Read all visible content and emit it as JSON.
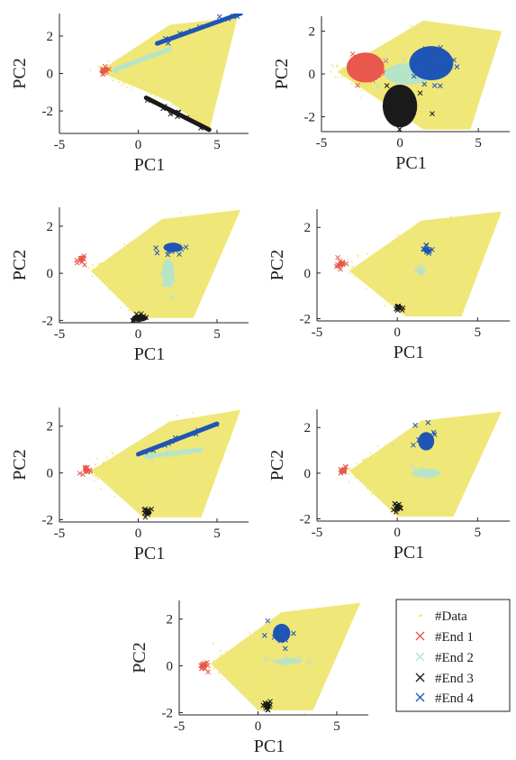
{
  "chart_data": [
    {
      "type": "scatter",
      "panel": 1,
      "xlabel": "PC1",
      "ylabel": "PC2",
      "xlim": [
        -5,
        7
      ],
      "ylim": [
        -3.2,
        3.2
      ],
      "xticks": [
        "-5",
        "0",
        "5"
      ],
      "yticks": [
        "-2",
        "0",
        "2"
      ],
      "data_cloud": {
        "tip": [
          -2.5,
          0.1
        ],
        "tops": [
          [
            2,
            2.6
          ],
          [
            6.3,
            3.0
          ]
        ],
        "bottoms": [
          [
            2,
            -1.5
          ],
          [
            4.5,
            -3.1
          ]
        ]
      },
      "series": [
        {
          "name": "#End 1",
          "shape": "segment",
          "from": [
            -2.3,
            0.1
          ],
          "to": [
            -2.0,
            0.2
          ]
        },
        {
          "name": "#End 2",
          "shape": "segment",
          "from": [
            -1.5,
            0.2
          ],
          "to": [
            2.0,
            1.3
          ]
        },
        {
          "name": "#End 3",
          "shape": "segment",
          "from": [
            0.5,
            -1.3
          ],
          "to": [
            4.5,
            -3.0
          ]
        },
        {
          "name": "#End 4",
          "shape": "segment",
          "from": [
            1.2,
            1.6
          ],
          "to": [
            6.5,
            3.2
          ]
        }
      ]
    },
    {
      "type": "scatter",
      "panel": 2,
      "xlabel": "PC1",
      "ylabel": "PC2",
      "xlim": [
        -5,
        7
      ],
      "ylim": [
        -2.7,
        2.7
      ],
      "xticks": [
        "-5",
        "0",
        "5"
      ],
      "yticks": [
        "-2",
        "0",
        "2"
      ],
      "data_cloud": {
        "tip": [
          -4,
          0.1
        ],
        "tops": [
          [
            1.5,
            2.5
          ],
          [
            6.5,
            2.0
          ]
        ],
        "bottoms": [
          [
            1.5,
            -2.6
          ],
          [
            4.5,
            -2.6
          ]
        ]
      },
      "series": [
        {
          "name": "#End 1",
          "shape": "blob",
          "center": [
            -2.2,
            0.3
          ],
          "spread": [
            1.2,
            0.7
          ]
        },
        {
          "name": "#End 2",
          "shape": "blob",
          "center": [
            0.5,
            0.0
          ],
          "spread": [
            1.5,
            0.5
          ]
        },
        {
          "name": "#End 3",
          "shape": "blob",
          "center": [
            0.0,
            -1.5
          ],
          "spread": [
            1.1,
            1.0
          ]
        },
        {
          "name": "#End 4",
          "shape": "blob",
          "center": [
            2.0,
            0.5
          ],
          "spread": [
            1.4,
            0.8
          ]
        }
      ]
    },
    {
      "type": "scatter",
      "panel": 3,
      "xlabel": "PC1",
      "ylabel": "PC2",
      "xlim": [
        -5,
        7
      ],
      "ylim": [
        -2.1,
        2.8
      ],
      "xticks": [
        "-5",
        "0",
        "5"
      ],
      "yticks": [
        "-2",
        "0",
        "2"
      ],
      "data_cloud": {
        "tip": [
          -3,
          0.1
        ],
        "tops": [
          [
            1.5,
            2.3
          ],
          [
            6.5,
            2.7
          ]
        ],
        "bottoms": [
          [
            0,
            -1.9
          ],
          [
            3.5,
            -1.9
          ]
        ]
      },
      "series": [
        {
          "name": "#End 1",
          "shape": "blob",
          "center": [
            -3.6,
            0.6
          ],
          "spread": [
            0.15,
            0.15
          ]
        },
        {
          "name": "#End 2",
          "shape": "blob",
          "center": [
            1.9,
            0.0
          ],
          "spread": [
            0.4,
            0.6
          ]
        },
        {
          "name": "#End 3",
          "shape": "blob",
          "center": [
            0.1,
            -1.9
          ],
          "spread": [
            0.5,
            0.15
          ]
        },
        {
          "name": "#End 4",
          "shape": "blob",
          "center": [
            2.2,
            1.1
          ],
          "spread": [
            0.6,
            0.2
          ]
        }
      ]
    },
    {
      "type": "scatter",
      "panel": 4,
      "xlabel": "PC1",
      "ylabel": "PC2",
      "xlim": [
        -5,
        7
      ],
      "ylim": [
        -2.1,
        2.8
      ],
      "xticks": [
        "-5",
        "0",
        "5"
      ],
      "yticks": [
        "-2",
        "0",
        "2"
      ],
      "data_cloud": {
        "tip": [
          -3,
          0.1
        ],
        "tops": [
          [
            1.5,
            2.3
          ],
          [
            6.5,
            2.7
          ]
        ],
        "bottoms": [
          [
            0.5,
            -1.9
          ],
          [
            4,
            -1.9
          ]
        ]
      },
      "series": [
        {
          "name": "#End 1",
          "shape": "blob",
          "center": [
            -3.5,
            0.4
          ],
          "spread": [
            0.2,
            0.08
          ]
        },
        {
          "name": "#End 2",
          "shape": "blob",
          "center": [
            1.5,
            0.1
          ],
          "spread": [
            0.1,
            0.1
          ]
        },
        {
          "name": "#End 3",
          "shape": "blob",
          "center": [
            0.1,
            -1.5
          ],
          "spread": [
            0.1,
            0.06
          ]
        },
        {
          "name": "#End 4",
          "shape": "blob",
          "center": [
            1.8,
            1.0
          ],
          "spread": [
            0.1,
            0.06
          ]
        }
      ]
    },
    {
      "type": "scatter",
      "panel": 5,
      "xlabel": "PC1",
      "ylabel": "PC2",
      "xlim": [
        -5,
        7
      ],
      "ylim": [
        -2.1,
        2.8
      ],
      "xticks": [
        "-5",
        "0",
        "5"
      ],
      "yticks": [
        "-2",
        "0",
        "2"
      ],
      "data_cloud": {
        "tip": [
          -3,
          0.1
        ],
        "tops": [
          [
            2,
            2.2
          ],
          [
            6.5,
            2.7
          ]
        ],
        "bottoms": [
          [
            0.3,
            -1.9
          ],
          [
            4,
            -1.9
          ]
        ]
      },
      "series": [
        {
          "name": "#End 1",
          "shape": "blob",
          "center": [
            -3.3,
            0.1
          ],
          "spread": [
            0.1,
            0.06
          ]
        },
        {
          "name": "#End 2",
          "shape": "segment",
          "from": [
            0.5,
            0.7
          ],
          "to": [
            4.0,
            1.0
          ]
        },
        {
          "name": "#End 3",
          "shape": "blob",
          "center": [
            0.6,
            -1.7
          ],
          "spread": [
            0.25,
            0.1
          ]
        },
        {
          "name": "#End 4",
          "shape": "segment",
          "from": [
            0.0,
            0.8
          ],
          "to": [
            5.0,
            2.1
          ]
        }
      ]
    },
    {
      "type": "scatter",
      "panel": 6,
      "xlabel": "PC1",
      "ylabel": "PC2",
      "xlim": [
        -5,
        7
      ],
      "ylim": [
        -2.1,
        2.8
      ],
      "xticks": [
        "-5",
        "0",
        "5"
      ],
      "yticks": [
        "-2",
        "0",
        "2"
      ],
      "data_cloud": {
        "tip": [
          -3,
          0.1
        ],
        "tops": [
          [
            1.5,
            2.3
          ],
          [
            6.5,
            2.7
          ]
        ],
        "bottoms": [
          [
            0,
            -1.9
          ],
          [
            3.5,
            -1.9
          ]
        ]
      },
      "series": [
        {
          "name": "#End 1",
          "shape": "blob",
          "center": [
            -3.4,
            0.1
          ],
          "spread": [
            0.18,
            0.1
          ]
        },
        {
          "name": "#End 2",
          "shape": "blob",
          "center": [
            1.8,
            0.0
          ],
          "spread": [
            0.9,
            0.2
          ]
        },
        {
          "name": "#End 3",
          "shape": "blob",
          "center": [
            0.0,
            -1.5
          ],
          "spread": [
            0.1,
            0.15
          ]
        },
        {
          "name": "#End 4",
          "shape": "blob",
          "center": [
            1.8,
            1.4
          ],
          "spread": [
            0.5,
            0.4
          ]
        }
      ]
    },
    {
      "type": "scatter",
      "panel": 7,
      "xlabel": "PC1",
      "ylabel": "PC2",
      "xlim": [
        -5,
        7
      ],
      "ylim": [
        -2.1,
        2.8
      ],
      "xticks": [
        "-5",
        "0",
        "5"
      ],
      "yticks": [
        "-2",
        "0",
        "2"
      ],
      "data_cloud": {
        "tip": [
          -3,
          0.1
        ],
        "tops": [
          [
            1.5,
            2.3
          ],
          [
            6.5,
            2.7
          ]
        ],
        "bottoms": [
          [
            0,
            -1.9
          ],
          [
            3.5,
            -1.9
          ]
        ]
      },
      "series": [
        {
          "name": "#End 1",
          "shape": "blob",
          "center": [
            -3.4,
            0.0
          ],
          "spread": [
            0.18,
            0.12
          ]
        },
        {
          "name": "#End 2",
          "shape": "blob",
          "center": [
            1.9,
            0.2
          ],
          "spread": [
            0.9,
            0.12
          ]
        },
        {
          "name": "#End 3",
          "shape": "blob",
          "center": [
            0.6,
            -1.7
          ],
          "spread": [
            0.12,
            0.15
          ]
        },
        {
          "name": "#End 4",
          "shape": "blob",
          "center": [
            1.5,
            1.4
          ],
          "spread": [
            0.55,
            0.4
          ]
        }
      ]
    }
  ],
  "legend": {
    "placement": "bottom-right",
    "entries": [
      {
        "label": "#Data",
        "marker": "dot",
        "color": "#eee46a"
      },
      {
        "label": "#End 1",
        "marker": "x",
        "color": "#e8584c"
      },
      {
        "label": "#End 2",
        "marker": "x",
        "color": "#b7e4c7"
      },
      {
        "label": "#End 3",
        "marker": "x",
        "color": "#1a1a1a"
      },
      {
        "label": "#End 4",
        "marker": "x",
        "color": "#1f55b4"
      }
    ]
  },
  "colors": {
    "data": "#eee46a",
    "end1": "#e8584c",
    "end2": "#b7e4c7",
    "end3": "#1a1a1a",
    "end4": "#1f55b4",
    "axis": "#222222"
  }
}
